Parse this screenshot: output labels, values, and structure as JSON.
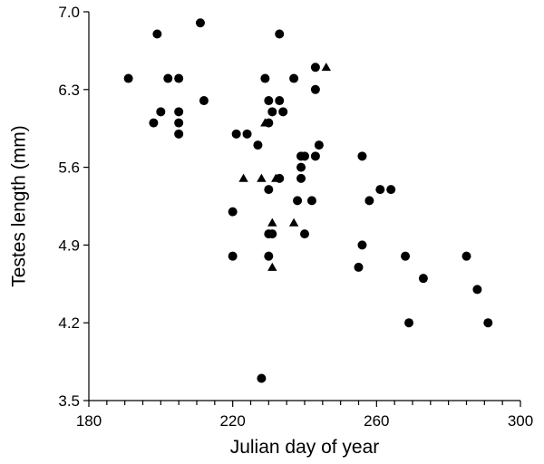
{
  "chart_data": {
    "type": "scatter",
    "xlabel": "Julian day of year",
    "ylabel": "Testes length (mm)",
    "xlim": [
      180,
      300
    ],
    "ylim": [
      3.5,
      7.0
    ],
    "xticks": [
      180,
      220,
      260,
      300
    ],
    "yticks": [
      3.5,
      4.2,
      4.9,
      5.6,
      6.3,
      7.0
    ],
    "ytick_labels": [
      "3.5",
      "4.2",
      "4.9",
      "5.6",
      "6.3",
      "7.0"
    ],
    "x_minor_step": 5,
    "grid": false,
    "marker_color": "#000000",
    "series": [
      {
        "marker": "circle",
        "points": [
          [
            191,
            6.4
          ],
          [
            199,
            6.8
          ],
          [
            202,
            6.4
          ],
          [
            205,
            6.4
          ],
          [
            211,
            6.9
          ],
          [
            212,
            6.2
          ],
          [
            200,
            6.1
          ],
          [
            198,
            6.0
          ],
          [
            205,
            6.1
          ],
          [
            205,
            6.0
          ],
          [
            205,
            5.9
          ],
          [
            221,
            5.9
          ],
          [
            224,
            5.9
          ],
          [
            227,
            5.8
          ],
          [
            229,
            6.4
          ],
          [
            230,
            6.2
          ],
          [
            231,
            6.1
          ],
          [
            230,
            6.0
          ],
          [
            233,
            6.8
          ],
          [
            233,
            6.2
          ],
          [
            234,
            6.1
          ],
          [
            237,
            6.4
          ],
          [
            243,
            6.5
          ],
          [
            243,
            6.3
          ],
          [
            244,
            5.8
          ],
          [
            243,
            5.7
          ],
          [
            240,
            5.7
          ],
          [
            239,
            5.7
          ],
          [
            239,
            5.6
          ],
          [
            239,
            5.5
          ],
          [
            233,
            5.5
          ],
          [
            230,
            5.4
          ],
          [
            238,
            5.3
          ],
          [
            242,
            5.3
          ],
          [
            256,
            5.7
          ],
          [
            258,
            5.3
          ],
          [
            261,
            5.4
          ],
          [
            264,
            5.4
          ],
          [
            220,
            5.2
          ],
          [
            220,
            4.8
          ],
          [
            230,
            5.0
          ],
          [
            231,
            5.0
          ],
          [
            240,
            5.0
          ],
          [
            230,
            4.8
          ],
          [
            256,
            4.9
          ],
          [
            255,
            4.7
          ],
          [
            268,
            4.8
          ],
          [
            273,
            4.6
          ],
          [
            285,
            4.8
          ],
          [
            288,
            4.5
          ],
          [
            269,
            4.2
          ],
          [
            291,
            4.2
          ],
          [
            228,
            3.7
          ]
        ]
      },
      {
        "marker": "triangle",
        "points": [
          [
            246,
            6.5
          ],
          [
            229,
            6.0
          ],
          [
            228,
            5.5
          ],
          [
            232,
            5.5
          ],
          [
            223,
            5.5
          ],
          [
            231,
            5.1
          ],
          [
            237,
            5.1
          ],
          [
            231,
            4.7
          ]
        ]
      }
    ]
  }
}
